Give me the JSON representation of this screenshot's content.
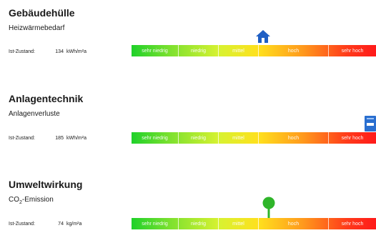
{
  "scale_labels": [
    "sehr niedrig",
    "niedrig",
    "mittel",
    "hoch",
    "sehr hoch"
  ],
  "sections": [
    {
      "title": "Gebäudehülle",
      "subtitle": "Heizwärmebedarf",
      "status_label": "Ist-Zustand:",
      "value": "134",
      "unit": "kWh/m²a",
      "marker_icon": "house-icon",
      "marker_color": "#1f5fc4"
    },
    {
      "title": "Anlagentechnik",
      "subtitle": "Anlagenverluste",
      "status_label": "Ist-Zustand:",
      "value": "185",
      "unit": "kWh/m²a",
      "marker_icon": "heating-system-icon",
      "marker_color": "#2a6fd0"
    },
    {
      "title": "Umweltwirkung",
      "subtitle_main": "CO",
      "subtitle_sub": "2",
      "subtitle_rest": "-Emission",
      "status_label": "Ist-Zustand:",
      "value": "74",
      "unit": "kg/m²a",
      "marker_icon": "tree-icon",
      "marker_color": "#2fb52a"
    }
  ]
}
